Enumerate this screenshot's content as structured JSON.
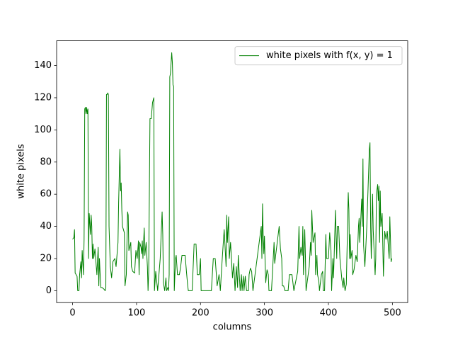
{
  "chart_data": {
    "type": "line",
    "xlabel": "columns",
    "ylabel": "white pixels",
    "xlim": [
      -24.95,
      523.95
    ],
    "ylim": [
      -7.4,
      155.4
    ],
    "xticks": [
      0,
      100,
      200,
      300,
      400,
      500
    ],
    "yticks": [
      0,
      20,
      40,
      60,
      80,
      100,
      120,
      140
    ],
    "legend": "upper right",
    "series": [
      {
        "name": "white pixels with f(x, y) = 1",
        "color": "#008000",
        "x": [
          0,
          2,
          3,
          4,
          7,
          8,
          10,
          11,
          13,
          14,
          15,
          17,
          18,
          19,
          20,
          21,
          22,
          23,
          24,
          25,
          26,
          28,
          29,
          30,
          31,
          32,
          33,
          35,
          38,
          40,
          41,
          42,
          44,
          46,
          49,
          51,
          52,
          53,
          54,
          55,
          56,
          57,
          59,
          61,
          63,
          66,
          68,
          71,
          72,
          74,
          75,
          76,
          77,
          78,
          81,
          82,
          84,
          86,
          87,
          88,
          91,
          92,
          94,
          97,
          99,
          101,
          103,
          104,
          105,
          107,
          108,
          109,
          110,
          112,
          113,
          115,
          117,
          118,
          119,
          121,
          123,
          125,
          127,
          128,
          130,
          133,
          135,
          137,
          139,
          140,
          141,
          142,
          144,
          146,
          147,
          149,
          150,
          151,
          152,
          153,
          155,
          156,
          157,
          158,
          159,
          161,
          162,
          164,
          167,
          169,
          171,
          176,
          178,
          180,
          181,
          187,
          190,
          193,
          195,
          198,
          200,
          201,
          217,
          220,
          223,
          226,
          229,
          231,
          234,
          237,
          240,
          241,
          242,
          244,
          245,
          247,
          250,
          252,
          254,
          256,
          258,
          259,
          262,
          264,
          265,
          267,
          268,
          270,
          272,
          275,
          276,
          278,
          280,
          282,
          294,
          295,
          296,
          297,
          298,
          299,
          300,
          301,
          302,
          304,
          306,
          307,
          311,
          315,
          316,
          323,
          325,
          327,
          328,
          330,
          332,
          337,
          339,
          343,
          346,
          352,
          354,
          355,
          357,
          359,
          360,
          361,
          363,
          364,
          365,
          370,
          372,
          373,
          374,
          376,
          379,
          380,
          382,
          383,
          385,
          386,
          389,
          391,
          392,
          394,
          396,
          397,
          400,
          402,
          404,
          405,
          407,
          408,
          411,
          413,
          414,
          416,
          418,
          421,
          423,
          424,
          426,
          428,
          431,
          432,
          433,
          434,
          435,
          437,
          438,
          440,
          443,
          445,
          447,
          448,
          449,
          452,
          453,
          454,
          455,
          457,
          460,
          464,
          465,
          466,
          467,
          469,
          470,
          473,
          474,
          475,
          477,
          478,
          479,
          480,
          481,
          482,
          484,
          486,
          488,
          490,
          492,
          495,
          496,
          498,
          499
        ],
        "values": [
          32,
          33,
          38,
          11,
          9,
          0,
          0,
          10,
          18,
          8,
          25,
          10,
          32,
          113,
          114,
          110,
          114,
          110,
          113,
          20,
          48,
          35,
          47,
          40,
          20,
          29,
          20,
          26,
          10,
          27,
          3,
          20,
          2,
          2,
          1,
          0,
          2,
          122,
          122,
          123,
          122,
          40,
          15,
          8,
          18,
          20,
          15,
          30,
          55,
          88,
          62,
          67,
          50,
          40,
          36,
          3,
          10,
          49,
          47,
          25,
          30,
          15,
          12,
          11,
          25,
          20,
          31,
          10,
          30,
          27,
          23,
          31,
          20,
          39,
          22,
          30,
          15,
          0,
          12,
          107,
          107,
          117,
          120,
          0,
          12,
          0,
          10,
          20,
          40,
          49,
          35,
          5,
          0,
          8,
          0,
          2,
          0,
          10,
          133,
          135,
          148,
          142,
          128,
          127,
          0,
          20,
          22,
          10,
          10,
          15,
          22,
          22,
          12,
          3,
          0,
          0,
          29,
          29,
          10,
          10,
          20,
          0,
          0,
          20,
          20,
          3,
          10,
          0,
          20,
          38,
          15,
          47,
          30,
          46,
          20,
          30,
          8,
          17,
          0,
          15,
          2,
          22,
          0,
          10,
          0,
          9,
          0,
          9,
          0,
          0,
          10,
          14,
          12,
          0,
          37,
          40,
          20,
          54,
          35,
          23,
          34,
          18,
          5,
          13,
          10,
          0,
          0,
          30,
          17,
          40,
          26,
          20,
          3,
          3,
          0,
          0,
          10,
          10,
          0,
          12,
          40,
          20,
          27,
          22,
          40,
          10,
          38,
          22,
          0,
          15,
          30,
          22,
          50,
          30,
          36,
          10,
          22,
          10,
          6,
          0,
          10,
          12,
          0,
          0,
          35,
          20,
          20,
          36,
          25,
          0,
          20,
          8,
          50,
          20,
          40,
          40,
          20,
          7,
          2,
          8,
          0,
          4,
          61,
          50,
          20,
          35,
          20,
          25,
          10,
          13,
          22,
          18,
          40,
          45,
          30,
          57,
          40,
          82,
          28,
          15,
          40,
          88,
          92,
          40,
          20,
          60,
          38,
          10,
          20,
          60,
          66,
          56,
          65,
          30,
          62,
          40,
          48,
          9,
          37,
          32,
          37,
          20,
          46,
          18,
          20
        ]
      }
    ]
  }
}
